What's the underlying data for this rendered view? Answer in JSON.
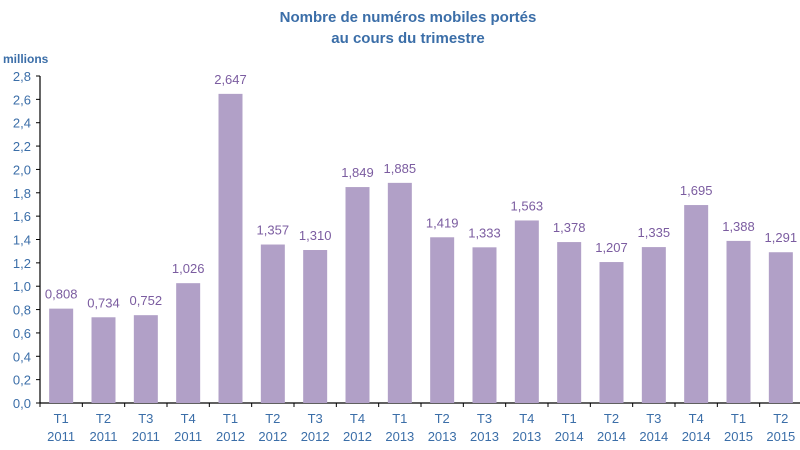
{
  "chart_data": {
    "type": "bar",
    "title": [
      "Nombre de numéros mobiles portés",
      "au cours du trimestre"
    ],
    "ylabel": "millions",
    "xlabel": "",
    "ylim": [
      0,
      2.8
    ],
    "yticks": [
      "0,0",
      "0,2",
      "0,4",
      "0,6",
      "0,8",
      "1,0",
      "1,2",
      "1,4",
      "1,6",
      "1,8",
      "2,0",
      "2,2",
      "2,4",
      "2,6",
      "2,8"
    ],
    "grid": false,
    "categories": [
      [
        "T1",
        "2011"
      ],
      [
        "T2",
        "2011"
      ],
      [
        "T3",
        "2011"
      ],
      [
        "T4",
        "2011"
      ],
      [
        "T1",
        "2012"
      ],
      [
        "T2",
        "2012"
      ],
      [
        "T3",
        "2012"
      ],
      [
        "T4",
        "2012"
      ],
      [
        "T1",
        "2013"
      ],
      [
        "T2",
        "2013"
      ],
      [
        "T3",
        "2013"
      ],
      [
        "T4",
        "2013"
      ],
      [
        "T1",
        "2014"
      ],
      [
        "T2",
        "2014"
      ],
      [
        "T3",
        "2014"
      ],
      [
        "T4",
        "2014"
      ],
      [
        "T1",
        "2015"
      ],
      [
        "T2",
        "2015"
      ]
    ],
    "values": [
      0.808,
      0.734,
      0.752,
      1.026,
      2.647,
      1.357,
      1.31,
      1.849,
      1.885,
      1.419,
      1.333,
      1.563,
      1.378,
      1.207,
      1.335,
      1.695,
      1.388,
      1.291
    ],
    "value_labels": [
      "0,808",
      "0,734",
      "0,752",
      "1,026",
      "2,647",
      "1,357",
      "1,310",
      "1,849",
      "1,885",
      "1,419",
      "1,333",
      "1,563",
      "1,378",
      "1,207",
      "1,335",
      "1,695",
      "1,388",
      "1,291"
    ],
    "colors": {
      "bar": "#b1a0c7",
      "label": "#7b5ca0",
      "axis_text": "#3b6ea8",
      "title": "#3b6ea8"
    }
  }
}
